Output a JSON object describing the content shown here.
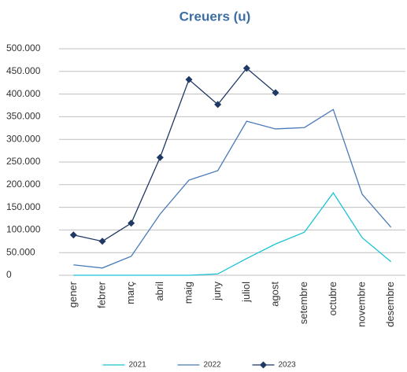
{
  "chart_data": {
    "type": "line",
    "title": "Creuers (u)",
    "categories": [
      "gener",
      "febrer",
      "març",
      "abril",
      "maig",
      "juny",
      "juliol",
      "agost",
      "setembre",
      "octubre",
      "novembre",
      "desembre"
    ],
    "series": [
      {
        "name": "2021",
        "color": "#19c3d6",
        "values": [
          0,
          0,
          0,
          0,
          0,
          3000,
          37000,
          69000,
          95000,
          182000,
          83000,
          30000
        ]
      },
      {
        "name": "2022",
        "color": "#4a7ab8",
        "values": [
          23000,
          16000,
          42000,
          135000,
          210000,
          231000,
          340000,
          323000,
          326000,
          366000,
          179000,
          106000
        ]
      },
      {
        "name": "2023",
        "color": "#1f3864",
        "marker": "diamond",
        "values": [
          89000,
          75000,
          115000,
          260000,
          432000,
          377000,
          457000,
          403000,
          null,
          null,
          null,
          null
        ]
      }
    ],
    "ylim": [
      0,
      500000
    ],
    "yticks": [
      0,
      {
        "value": 50000,
        "label": "50.000"
      },
      {
        "value": 100000,
        "label": "100.000"
      },
      {
        "value": 150000,
        "label": "150.000"
      },
      {
        "value": 200000,
        "label": "200.000"
      },
      {
        "value": 250000,
        "label": "250.000"
      },
      {
        "value": 300000,
        "label": "300.000"
      },
      {
        "value": 350000,
        "label": "350.000"
      },
      {
        "value": 400000,
        "label": "400.000"
      },
      {
        "value": 450000,
        "label": "450.000"
      },
      {
        "value": 500000,
        "label": "500.000"
      }
    ],
    "grid": true,
    "legend": "bottom"
  }
}
